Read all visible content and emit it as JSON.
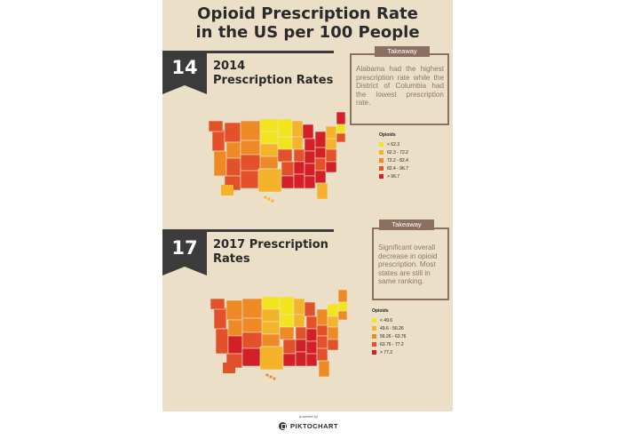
{
  "title": {
    "line1": "Opioid Prescription Rate",
    "line2": "in the US per 100 People"
  },
  "colors": {
    "background": "#ecdfc8",
    "dark": "#3b3b3b",
    "takeaway": "#8b6f60",
    "scale": [
      "#f2e51e",
      "#f4b32b",
      "#ee8a25",
      "#e2512a",
      "#d21f28"
    ]
  },
  "sections": [
    {
      "number": "14",
      "heading": [
        "2014",
        "Prescription  Rates"
      ],
      "takeaway_label": "Takeaway",
      "takeaway_text": "Alabama had the highest prescription rate while the District of Columbia had the lowest prescription rate.",
      "legend": {
        "title": "Opioids",
        "items": [
          "< 62.3",
          "62.3 - 72.2",
          "72.2 - 82.4",
          "82.4 - 96.7",
          "> 96.7"
        ]
      }
    },
    {
      "number": "17",
      "heading": [
        "2017 Prescription",
        "Rates"
      ],
      "takeaway_label": "Takeaway",
      "takeaway_text": "Significant overall decrease in opioid prescription. Most states are still in same ranking.",
      "legend": {
        "title": "Opioids",
        "items": [
          "< 49.6",
          "49.6 - 56.26",
          "56.26 - 63.76",
          "63.76 - 77.2",
          "> 77.2"
        ]
      }
    }
  ],
  "footer": {
    "powered": "powered by",
    "brand": "PIKTOCHART",
    "logo_icon": "piktochart-logo-icon"
  }
}
